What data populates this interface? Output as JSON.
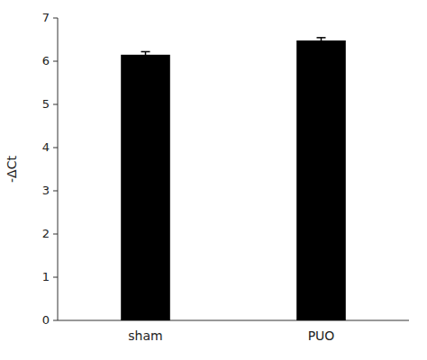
{
  "chart_data": {
    "type": "bar",
    "categories": [
      "sham",
      "PUO"
    ],
    "values": [
      6.15,
      6.48
    ],
    "errors": [
      0.07,
      0.065
    ],
    "color": "#000000",
    "ylabel": "-ΔCt",
    "ylim": [
      0,
      7
    ],
    "yticks": [
      0,
      1,
      2,
      3,
      4,
      5,
      6,
      7
    ],
    "grid": false
  }
}
